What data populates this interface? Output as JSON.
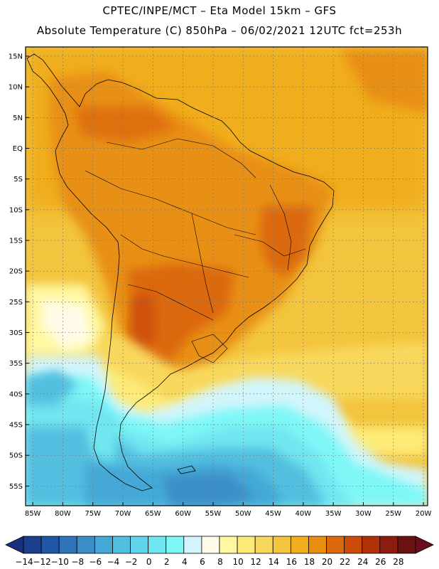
{
  "header": {
    "line1": "CPTEC/INPE/MCT –  Eta Model 15km – GFS",
    "line2": "Absolute Temperature (C) 850hPa – 06/02/2021 12UTC fct=253h"
  },
  "map": {
    "lat_labels": [
      "15N",
      "10N",
      "5N",
      "EQ",
      "5S",
      "10S",
      "15S",
      "20S",
      "25S",
      "30S",
      "35S",
      "40S",
      "45S",
      "50S",
      "55S"
    ],
    "lat_values": [
      15,
      10,
      5,
      0,
      -5,
      -10,
      -15,
      -20,
      -25,
      -30,
      -35,
      -40,
      -45,
      -50,
      -55
    ],
    "lon_labels": [
      "85W",
      "80W",
      "75W",
      "70W",
      "65W",
      "60W",
      "55W",
      "50W",
      "45W",
      "40W",
      "35W",
      "30W",
      "25W",
      "20W"
    ],
    "lon_values": [
      -85,
      -80,
      -75,
      -70,
      -65,
      -60,
      -55,
      -50,
      -45,
      -40,
      -35,
      -30,
      -25,
      -20
    ]
  },
  "colorbar": {
    "labels": [
      "-14",
      "-12",
      "-10",
      "-8",
      "-6",
      "-4",
      "-2",
      "0",
      "2",
      "4",
      "6",
      "8",
      "10",
      "12",
      "14",
      "16",
      "18",
      "20",
      "22",
      "24",
      "26",
      "28"
    ],
    "colors": [
      "#1b3f8f",
      "#1f57a6",
      "#2f73b8",
      "#3a8ec8",
      "#45a8d6",
      "#52bfe0",
      "#60d4ea",
      "#6fe6f0",
      "#7ff7f7",
      "#d2f5fb",
      "#fffbe8",
      "#fff8a0",
      "#fdeb78",
      "#f8d85c",
      "#f3c43d",
      "#f0ad1f",
      "#e88f12",
      "#dc690c",
      "#cc4b0a",
      "#b03008",
      "#8b1c10",
      "#6a1210"
    ],
    "min_color": "#1a2f80",
    "max_color": "#6b0d1e"
  }
}
